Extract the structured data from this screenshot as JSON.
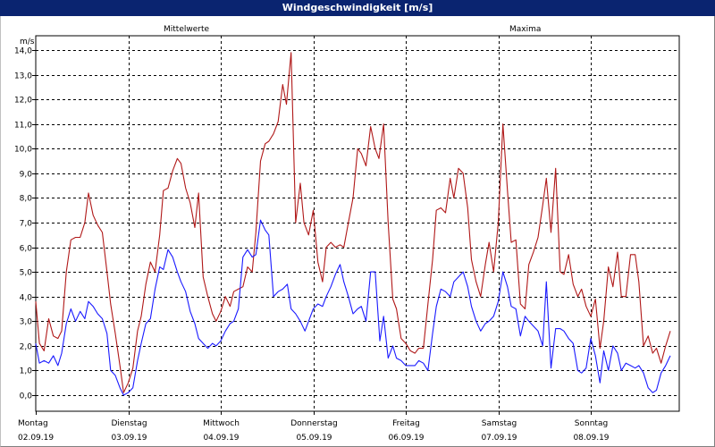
{
  "window": {
    "title": "Windgeschwindigkeit [m/s]"
  },
  "chart_data": {
    "type": "line",
    "ylabel": "m/s",
    "ylim": [
      0,
      14
    ],
    "yticks": [
      "0,0",
      "1,0",
      "2,0",
      "3,0",
      "4,0",
      "5,0",
      "6,0",
      "7,0",
      "8,0",
      "9,0",
      "10,0",
      "11,0",
      "12,0",
      "13,0",
      "14,0"
    ],
    "grid": true,
    "xlim": [
      0,
      7
    ],
    "xticks": [
      {
        "day": "Montag",
        "date": "02.09.19"
      },
      {
        "day": "Dienstag",
        "date": "03.09.19"
      },
      {
        "day": "Mittwoch",
        "date": "04.09.19"
      },
      {
        "day": "Donnerstag",
        "date": "05.09.19"
      },
      {
        "day": "Freitag",
        "date": "06.09.19"
      },
      {
        "day": "Samstag",
        "date": "07.09.19"
      },
      {
        "day": "Sonntag",
        "date": "08.09.19"
      }
    ],
    "series": [
      {
        "name": "Mittelwerte",
        "color": "#1a1aff",
        "points": [
          [
            0.0,
            2.1
          ],
          [
            0.04,
            1.3
          ],
          [
            0.09,
            1.4
          ],
          [
            0.14,
            1.3
          ],
          [
            0.19,
            1.6
          ],
          [
            0.24,
            1.2
          ],
          [
            0.28,
            1.7
          ],
          [
            0.33,
            2.9
          ],
          [
            0.38,
            3.5
          ],
          [
            0.43,
            3.0
          ],
          [
            0.48,
            3.4
          ],
          [
            0.53,
            3.1
          ],
          [
            0.57,
            3.8
          ],
          [
            0.62,
            3.6
          ],
          [
            0.67,
            3.3
          ],
          [
            0.72,
            3.1
          ],
          [
            0.77,
            2.5
          ],
          [
            0.81,
            1.0
          ],
          [
            0.86,
            0.8
          ],
          [
            0.91,
            0.3
          ],
          [
            0.95,
            0.0
          ],
          [
            1.0,
            0.1
          ],
          [
            1.05,
            0.3
          ],
          [
            1.1,
            1.4
          ],
          [
            1.14,
            2.1
          ],
          [
            1.19,
            2.9
          ],
          [
            1.24,
            3.1
          ],
          [
            1.29,
            4.3
          ],
          [
            1.34,
            5.2
          ],
          [
            1.38,
            5.1
          ],
          [
            1.43,
            5.9
          ],
          [
            1.48,
            5.6
          ],
          [
            1.53,
            5.0
          ],
          [
            1.57,
            4.6
          ],
          [
            1.62,
            4.2
          ],
          [
            1.67,
            3.4
          ],
          [
            1.72,
            2.9
          ],
          [
            1.76,
            2.3
          ],
          [
            1.81,
            2.1
          ],
          [
            1.86,
            1.9
          ],
          [
            1.91,
            2.1
          ],
          [
            1.95,
            2.0
          ],
          [
            2.0,
            2.2
          ],
          [
            2.05,
            2.6
          ],
          [
            2.1,
            2.9
          ],
          [
            2.14,
            3.0
          ],
          [
            2.19,
            3.5
          ],
          [
            2.24,
            5.6
          ],
          [
            2.29,
            5.9
          ],
          [
            2.34,
            5.6
          ],
          [
            2.38,
            5.7
          ],
          [
            2.43,
            7.1
          ],
          [
            2.48,
            6.7
          ],
          [
            2.52,
            6.5
          ],
          [
            2.57,
            4.0
          ],
          [
            2.62,
            4.2
          ],
          [
            2.67,
            4.3
          ],
          [
            2.72,
            4.5
          ],
          [
            2.76,
            3.5
          ],
          [
            2.81,
            3.3
          ],
          [
            2.86,
            3.0
          ],
          [
            2.91,
            2.6
          ],
          [
            2.95,
            3.0
          ],
          [
            3.0,
            3.5
          ],
          [
            3.05,
            3.7
          ],
          [
            3.1,
            3.6
          ],
          [
            3.14,
            4.0
          ],
          [
            3.19,
            4.4
          ],
          [
            3.24,
            4.9
          ],
          [
            3.29,
            5.3
          ],
          [
            3.33,
            4.6
          ],
          [
            3.38,
            4.0
          ],
          [
            3.43,
            3.3
          ],
          [
            3.48,
            3.5
          ],
          [
            3.52,
            3.6
          ],
          [
            3.57,
            3.0
          ],
          [
            3.62,
            5.0
          ],
          [
            3.67,
            5.0
          ],
          [
            3.72,
            2.2
          ],
          [
            3.76,
            3.2
          ],
          [
            3.81,
            1.5
          ],
          [
            3.86,
            2.0
          ],
          [
            3.9,
            1.5
          ],
          [
            3.95,
            1.4
          ],
          [
            4.0,
            1.2
          ],
          [
            4.05,
            1.2
          ],
          [
            4.1,
            1.2
          ],
          [
            4.14,
            1.4
          ],
          [
            4.19,
            1.3
          ],
          [
            4.24,
            1.0
          ],
          [
            4.29,
            2.5
          ],
          [
            4.33,
            3.6
          ],
          [
            4.38,
            4.3
          ],
          [
            4.43,
            4.2
          ],
          [
            4.48,
            4.0
          ],
          [
            4.52,
            4.6
          ],
          [
            4.57,
            4.8
          ],
          [
            4.62,
            5.0
          ],
          [
            4.67,
            4.4
          ],
          [
            4.71,
            3.6
          ],
          [
            4.76,
            3.0
          ],
          [
            4.81,
            2.6
          ],
          [
            4.86,
            2.9
          ],
          [
            4.9,
            3.0
          ],
          [
            4.95,
            3.2
          ],
          [
            5.0,
            3.8
          ],
          [
            5.05,
            5.0
          ],
          [
            5.1,
            4.4
          ],
          [
            5.14,
            3.6
          ],
          [
            5.19,
            3.5
          ],
          [
            5.24,
            2.4
          ],
          [
            5.29,
            3.2
          ],
          [
            5.33,
            3.0
          ],
          [
            5.38,
            2.8
          ],
          [
            5.43,
            2.6
          ],
          [
            5.48,
            2.0
          ],
          [
            5.52,
            4.6
          ],
          [
            5.57,
            1.1
          ],
          [
            5.62,
            2.7
          ],
          [
            5.67,
            2.7
          ],
          [
            5.71,
            2.6
          ],
          [
            5.76,
            2.3
          ],
          [
            5.81,
            2.1
          ],
          [
            5.86,
            1.0
          ],
          [
            5.9,
            0.9
          ],
          [
            5.95,
            1.1
          ],
          [
            6.0,
            2.3
          ],
          [
            6.05,
            1.6
          ],
          [
            6.1,
            0.5
          ],
          [
            6.14,
            1.8
          ],
          [
            6.19,
            1.0
          ],
          [
            6.24,
            2.0
          ],
          [
            6.29,
            1.7
          ],
          [
            6.33,
            1.0
          ],
          [
            6.38,
            1.3
          ],
          [
            6.43,
            1.2
          ],
          [
            6.48,
            1.1
          ],
          [
            6.52,
            1.2
          ],
          [
            6.57,
            0.9
          ],
          [
            6.62,
            0.3
          ],
          [
            6.67,
            0.1
          ],
          [
            6.71,
            0.2
          ],
          [
            6.76,
            0.9
          ],
          [
            6.81,
            1.2
          ],
          [
            6.86,
            1.6
          ]
        ]
      },
      {
        "name": "Maxima",
        "color": "#b01818",
        "points": [
          [
            0.0,
            3.8
          ],
          [
            0.04,
            2.1
          ],
          [
            0.09,
            1.8
          ],
          [
            0.14,
            3.1
          ],
          [
            0.19,
            2.4
          ],
          [
            0.24,
            2.3
          ],
          [
            0.28,
            2.6
          ],
          [
            0.33,
            5.0
          ],
          [
            0.38,
            6.3
          ],
          [
            0.43,
            6.4
          ],
          [
            0.48,
            6.4
          ],
          [
            0.53,
            7.0
          ],
          [
            0.57,
            8.2
          ],
          [
            0.62,
            7.3
          ],
          [
            0.67,
            6.9
          ],
          [
            0.72,
            6.6
          ],
          [
            0.77,
            5.0
          ],
          [
            0.81,
            3.7
          ],
          [
            0.86,
            2.5
          ],
          [
            0.91,
            1.2
          ],
          [
            0.95,
            0.1
          ],
          [
            1.0,
            0.5
          ],
          [
            1.05,
            1.1
          ],
          [
            1.1,
            2.6
          ],
          [
            1.14,
            3.2
          ],
          [
            1.19,
            4.5
          ],
          [
            1.24,
            5.4
          ],
          [
            1.29,
            5.0
          ],
          [
            1.34,
            6.5
          ],
          [
            1.38,
            8.3
          ],
          [
            1.43,
            8.4
          ],
          [
            1.48,
            9.1
          ],
          [
            1.53,
            9.6
          ],
          [
            1.57,
            9.4
          ],
          [
            1.62,
            8.4
          ],
          [
            1.67,
            7.8
          ],
          [
            1.72,
            6.8
          ],
          [
            1.76,
            8.2
          ],
          [
            1.81,
            4.8
          ],
          [
            1.86,
            4.0
          ],
          [
            1.91,
            3.3
          ],
          [
            1.95,
            3.0
          ],
          [
            2.0,
            3.4
          ],
          [
            2.05,
            4.0
          ],
          [
            2.1,
            3.6
          ],
          [
            2.14,
            4.2
          ],
          [
            2.19,
            4.3
          ],
          [
            2.24,
            4.4
          ],
          [
            2.29,
            5.2
          ],
          [
            2.34,
            5.0
          ],
          [
            2.38,
            6.6
          ],
          [
            2.43,
            9.5
          ],
          [
            2.48,
            10.2
          ],
          [
            2.52,
            10.3
          ],
          [
            2.57,
            10.6
          ],
          [
            2.62,
            11.1
          ],
          [
            2.67,
            12.6
          ],
          [
            2.71,
            11.8
          ],
          [
            2.76,
            13.9
          ],
          [
            2.81,
            7.0
          ],
          [
            2.86,
            8.6
          ],
          [
            2.9,
            7.0
          ],
          [
            2.95,
            6.5
          ],
          [
            3.0,
            7.5
          ],
          [
            3.05,
            5.4
          ],
          [
            3.1,
            4.6
          ],
          [
            3.14,
            6.0
          ],
          [
            3.19,
            6.2
          ],
          [
            3.24,
            6.0
          ],
          [
            3.29,
            6.1
          ],
          [
            3.33,
            6.0
          ],
          [
            3.38,
            7.0
          ],
          [
            3.43,
            8.0
          ],
          [
            3.48,
            10.0
          ],
          [
            3.52,
            9.8
          ],
          [
            3.57,
            9.3
          ],
          [
            3.62,
            10.9
          ],
          [
            3.67,
            10.0
          ],
          [
            3.71,
            9.6
          ],
          [
            3.76,
            11.0
          ],
          [
            3.81,
            7.0
          ],
          [
            3.86,
            3.9
          ],
          [
            3.9,
            3.5
          ],
          [
            3.95,
            2.3
          ],
          [
            4.0,
            2.1
          ],
          [
            4.05,
            1.8
          ],
          [
            4.1,
            1.7
          ],
          [
            4.14,
            1.9
          ],
          [
            4.19,
            1.9
          ],
          [
            4.24,
            3.7
          ],
          [
            4.29,
            5.5
          ],
          [
            4.33,
            7.5
          ],
          [
            4.38,
            7.6
          ],
          [
            4.43,
            7.4
          ],
          [
            4.48,
            8.8
          ],
          [
            4.52,
            8.0
          ],
          [
            4.57,
            9.2
          ],
          [
            4.62,
            9.0
          ],
          [
            4.67,
            7.6
          ],
          [
            4.71,
            5.5
          ],
          [
            4.76,
            4.6
          ],
          [
            4.81,
            4.0
          ],
          [
            4.86,
            5.3
          ],
          [
            4.9,
            6.2
          ],
          [
            4.95,
            5.0
          ],
          [
            5.0,
            7.0
          ],
          [
            5.05,
            11.0
          ],
          [
            5.1,
            8.3
          ],
          [
            5.14,
            6.2
          ],
          [
            5.19,
            6.3
          ],
          [
            5.24,
            3.7
          ],
          [
            5.29,
            3.5
          ],
          [
            5.33,
            5.3
          ],
          [
            5.38,
            5.8
          ],
          [
            5.43,
            6.4
          ],
          [
            5.48,
            7.7
          ],
          [
            5.52,
            8.8
          ],
          [
            5.57,
            6.6
          ],
          [
            5.62,
            9.2
          ],
          [
            5.67,
            5.0
          ],
          [
            5.71,
            4.9
          ],
          [
            5.76,
            5.7
          ],
          [
            5.81,
            4.5
          ],
          [
            5.86,
            4.0
          ],
          [
            5.9,
            4.3
          ],
          [
            5.95,
            3.6
          ],
          [
            6.0,
            3.2
          ],
          [
            6.05,
            3.9
          ],
          [
            6.1,
            1.9
          ],
          [
            6.14,
            3.0
          ],
          [
            6.19,
            5.2
          ],
          [
            6.24,
            4.4
          ],
          [
            6.29,
            5.8
          ],
          [
            6.33,
            4.0
          ],
          [
            6.38,
            4.0
          ],
          [
            6.43,
            5.7
          ],
          [
            6.48,
            5.7
          ],
          [
            6.52,
            4.6
          ],
          [
            6.57,
            2.0
          ],
          [
            6.62,
            2.4
          ],
          [
            6.67,
            1.7
          ],
          [
            6.71,
            1.9
          ],
          [
            6.76,
            1.3
          ],
          [
            6.81,
            2.0
          ],
          [
            6.86,
            2.6
          ]
        ]
      }
    ]
  }
}
